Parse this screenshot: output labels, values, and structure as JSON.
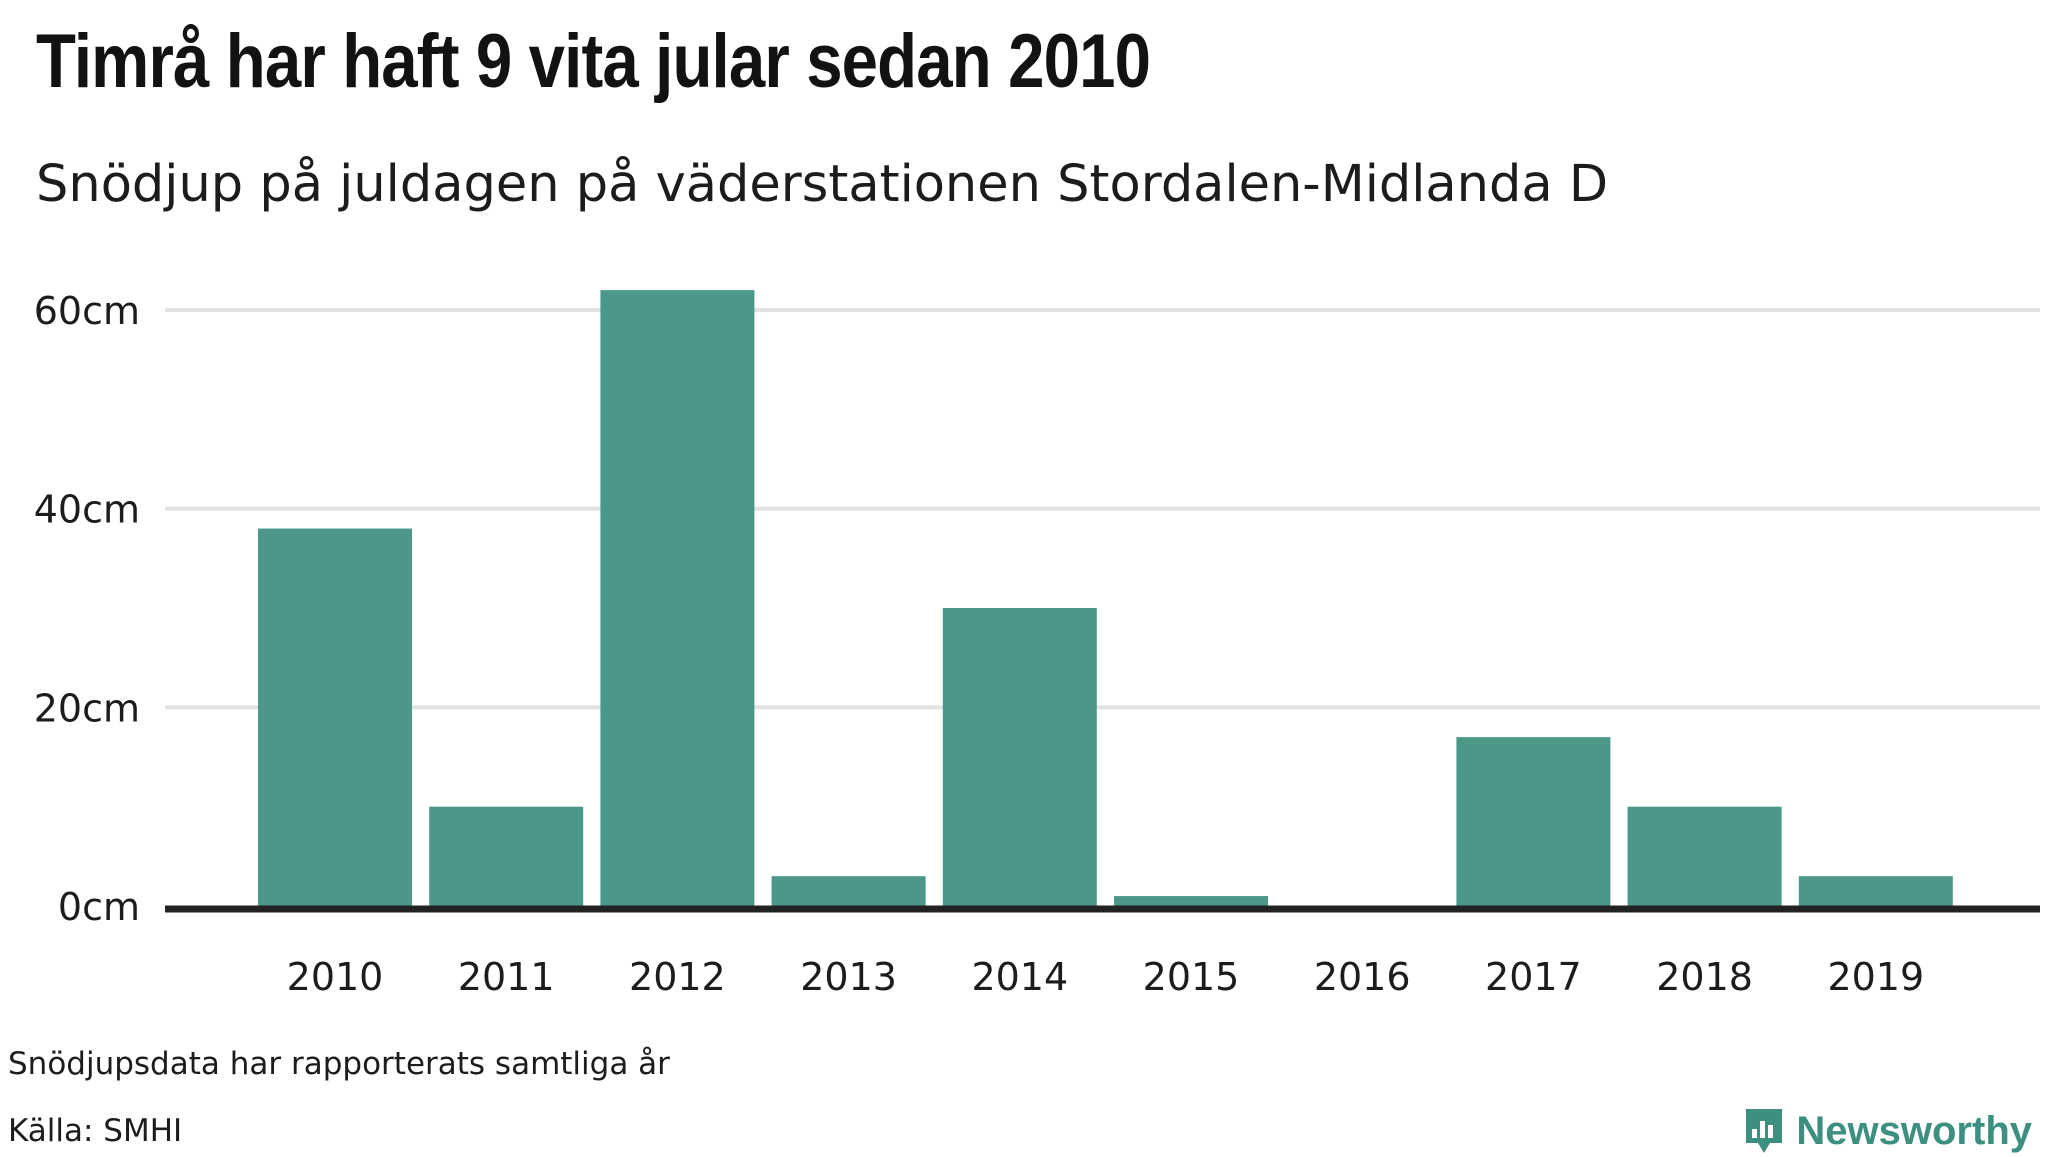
{
  "title": "Timrå har haft 9 vita jular sedan 2010",
  "subtitle": "Snödjup på juldagen på väderstationen Stordalen-Midlanda D",
  "note": "Snödjupsdata har rapporterats samtliga år",
  "source": "Källa: SMHI",
  "brand": {
    "name": "Newsworthy",
    "icon": "newsworthy-logo-icon",
    "color": "#3d8f80"
  },
  "colors": {
    "bar": "#4b978a",
    "grid": "#e2e2e2",
    "baseline": "#222222"
  },
  "chart_data": {
    "type": "bar",
    "categories": [
      "2010",
      "2011",
      "2012",
      "2013",
      "2014",
      "2015",
      "2016",
      "2017",
      "2018",
      "2019"
    ],
    "values": [
      38,
      10,
      62,
      3,
      30,
      1,
      0,
      17,
      10,
      3
    ],
    "ylim": [
      0,
      60
    ],
    "yticks": [
      0,
      20,
      40,
      60
    ],
    "ytick_labels": [
      "0cm",
      "20cm",
      "40cm",
      "60cm"
    ],
    "grid": true,
    "legend": "none"
  }
}
